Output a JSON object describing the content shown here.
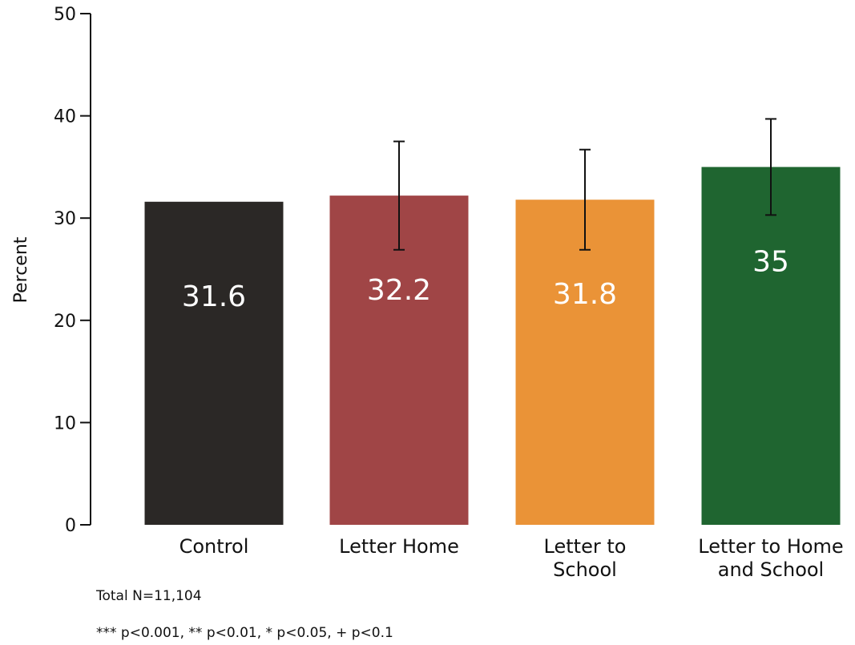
{
  "chart_data": {
    "type": "bar",
    "categories": [
      [
        "Control"
      ],
      [
        "Letter Home"
      ],
      [
        "Letter to",
        "School"
      ],
      [
        "Letter to Home",
        "and School"
      ]
    ],
    "values": [
      31.6,
      32.2,
      31.8,
      35
    ],
    "value_labels": [
      "31.6",
      "32.2",
      "31.8",
      "35"
    ],
    "error_bars": [
      null,
      [
        26.9,
        37.5
      ],
      [
        26.9,
        36.7
      ],
      [
        30.3,
        39.7
      ]
    ],
    "colors": [
      "#2b2826",
      "#a04546",
      "#ea9337",
      "#1f6530"
    ],
    "ylabel": "Percent",
    "xlabel": "",
    "ylim": [
      0,
      50
    ],
    "yticks": [
      0,
      10,
      20,
      30,
      40,
      50
    ],
    "grid": false,
    "legend": "none"
  },
  "notes": {
    "total_n": "Total N=11,104",
    "significance": "*** p<0.001, ** p<0.01, * p<0.05, + p<0.1"
  }
}
